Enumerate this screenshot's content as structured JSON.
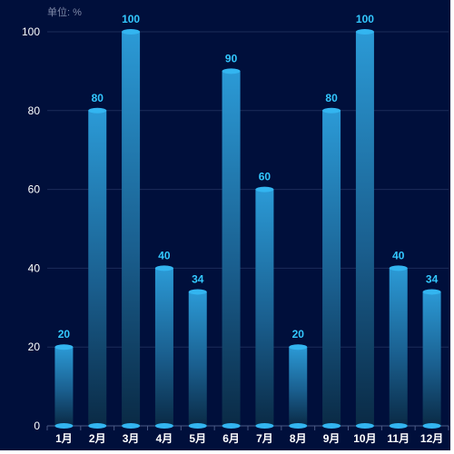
{
  "chart_data": {
    "type": "bar",
    "unit_label": "单位: %",
    "categories": [
      "1月",
      "2月",
      "3月",
      "4月",
      "5月",
      "6月",
      "7月",
      "8月",
      "9月",
      "10月",
      "11月",
      "12月"
    ],
    "values": [
      20,
      80,
      100,
      40,
      34,
      90,
      60,
      20,
      80,
      100,
      40,
      34
    ],
    "ylim": [
      0,
      100
    ],
    "yticks": [
      0,
      20,
      40,
      60,
      80,
      100
    ],
    "grid": true,
    "colors": {
      "background": "#000f3b",
      "bar_top": "#2b9ad6",
      "bar_bottom": "#0a2a45",
      "bar_cap": "#33b5f0",
      "value_label": "#33c8ff",
      "grid": "#1c2d5a"
    }
  }
}
